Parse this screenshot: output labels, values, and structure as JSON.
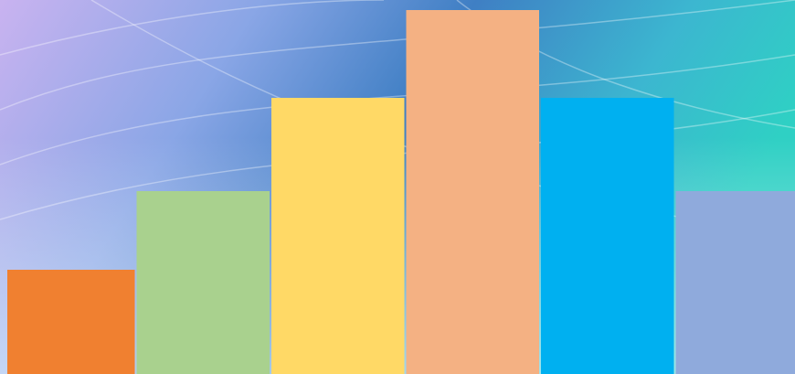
{
  "chart_data": {
    "type": "bar",
    "values": [
      114,
      200,
      302,
      398,
      302,
      200
    ],
    "colors": [
      "#f08030",
      "#a9d18e",
      "#ffd966",
      "#f4b183",
      "#00b0f0",
      "#8faadc"
    ],
    "ylim": [
      0,
      409
    ]
  }
}
